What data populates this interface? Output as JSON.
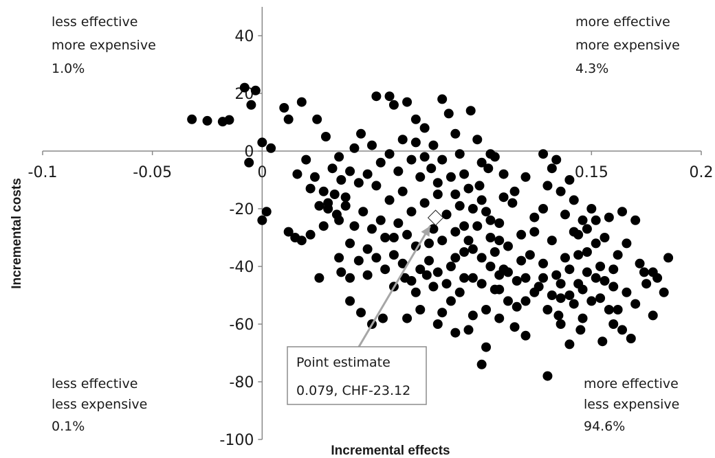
{
  "chart_data": {
    "type": "scatter",
    "xlabel": "Incremental effects",
    "ylabel": "Incremental costs",
    "xlim": [
      -0.1,
      0.2
    ],
    "ylim": [
      -100,
      50
    ],
    "x_ticks": [
      "-0.1",
      "-0.05",
      "0",
      "0.15",
      "0.2"
    ],
    "x_tick_values": [
      -0.1,
      -0.05,
      0,
      0.15,
      0.2
    ],
    "y_ticks": [
      "40",
      "20",
      "0",
      "-20",
      "-40",
      "-60",
      "-80",
      "-100"
    ],
    "y_tick_values": [
      40,
      20,
      0,
      -20,
      -40,
      -60,
      -80,
      -100
    ],
    "grid": false,
    "quadrants": [
      {
        "lines": [
          "less effective",
          "more expensive",
          "1.0%"
        ],
        "position": "top-left"
      },
      {
        "lines": [
          "more effective",
          "more expensive",
          "4.3%"
        ],
        "position": "top-right"
      },
      {
        "lines": [
          "less effective",
          "less expensive",
          "0.1%"
        ],
        "position": "bottom-left"
      },
      {
        "lines": [
          "more effective",
          "less expensive",
          "94.6%"
        ],
        "position": "bottom-right"
      }
    ],
    "point_estimate": {
      "x": 0.079,
      "y": -23.12,
      "label_lines": [
        "Point estimate",
        "0.079, CHF-23.12"
      ]
    },
    "marker_colors": {
      "samples": "#000000",
      "estimate": "#ffffff",
      "callout_border": "#8c8c8c",
      "arrow": "#a6a6a6"
    },
    "points": [
      [
        -0.032,
        11
      ],
      [
        -0.025,
        10.5
      ],
      [
        -0.018,
        10.2
      ],
      [
        -0.015,
        10.8
      ],
      [
        -0.008,
        22
      ],
      [
        -0.005,
        16
      ],
      [
        -0.003,
        21
      ],
      [
        -0.006,
        -4
      ],
      [
        0.0,
        3
      ],
      [
        0.004,
        1
      ],
      [
        0.002,
        -21
      ],
      [
        0.0,
        -24
      ],
      [
        0.012,
        -28
      ],
      [
        0.015,
        -30
      ],
      [
        0.018,
        -31
      ],
      [
        0.022,
        -29
      ],
      [
        0.026,
        -44
      ],
      [
        0.028,
        -26
      ],
      [
        0.03,
        -18
      ],
      [
        0.033,
        -15
      ],
      [
        0.01,
        15
      ],
      [
        0.012,
        11
      ],
      [
        0.018,
        17
      ],
      [
        0.025,
        11
      ],
      [
        0.029,
        5
      ],
      [
        0.035,
        -2
      ],
      [
        0.04,
        -7
      ],
      [
        0.042,
        1
      ],
      [
        0.044,
        -11
      ],
      [
        0.045,
        6
      ],
      [
        0.052,
        19
      ],
      [
        0.058,
        19
      ],
      [
        0.06,
        16
      ],
      [
        0.066,
        17
      ],
      [
        0.07,
        11
      ],
      [
        0.074,
        -2
      ],
      [
        0.077,
        -6
      ],
      [
        0.08,
        -11
      ],
      [
        0.082,
        18
      ],
      [
        0.085,
        13
      ],
      [
        0.088,
        6
      ],
      [
        0.09,
        -1
      ],
      [
        0.092,
        -8
      ],
      [
        0.095,
        14
      ],
      [
        0.098,
        4
      ],
      [
        0.1,
        -4
      ],
      [
        0.104,
        -1
      ],
      [
        0.11,
        -16
      ],
      [
        0.103,
        -6
      ],
      [
        0.099,
        -12
      ],
      [
        0.03,
        -20
      ],
      [
        0.035,
        -24
      ],
      [
        0.038,
        -19
      ],
      [
        0.04,
        -32
      ],
      [
        0.042,
        -26
      ],
      [
        0.046,
        -21
      ],
      [
        0.048,
        -34
      ],
      [
        0.05,
        -27
      ],
      [
        0.052,
        -12
      ],
      [
        0.054,
        -24
      ],
      [
        0.056,
        -30
      ],
      [
        0.058,
        -17
      ],
      [
        0.06,
        -36
      ],
      [
        0.062,
        -25
      ],
      [
        0.064,
        -14
      ],
      [
        0.066,
        -29
      ],
      [
        0.068,
        -21
      ],
      [
        0.07,
        -33
      ],
      [
        0.072,
        -9
      ],
      [
        0.074,
        -18
      ],
      [
        0.076,
        -38
      ],
      [
        0.078,
        -27
      ],
      [
        0.08,
        -15
      ],
      [
        0.082,
        -31
      ],
      [
        0.084,
        -22
      ],
      [
        0.086,
        -40
      ],
      [
        0.088,
        -28
      ],
      [
        0.09,
        -19
      ],
      [
        0.092,
        -35
      ],
      [
        0.094,
        -13
      ],
      [
        0.096,
        -44
      ],
      [
        0.098,
        -26
      ],
      [
        0.1,
        -37
      ],
      [
        0.102,
        -21
      ],
      [
        0.104,
        -30
      ],
      [
        0.106,
        -48
      ],
      [
        0.108,
        -25
      ],
      [
        0.11,
        -41
      ],
      [
        0.112,
        -33
      ],
      [
        0.114,
        -18
      ],
      [
        0.116,
        -45
      ],
      [
        0.118,
        -29
      ],
      [
        0.12,
        -52
      ],
      [
        0.122,
        -36
      ],
      [
        0.124,
        -23
      ],
      [
        0.126,
        -47
      ],
      [
        0.128,
        -39
      ],
      [
        0.13,
        -55
      ],
      [
        0.132,
        -31
      ],
      [
        0.134,
        -43
      ],
      [
        0.136,
        -60
      ],
      [
        0.138,
        -37
      ],
      [
        0.14,
        -50
      ],
      [
        0.142,
        -28
      ],
      [
        0.144,
        -46
      ],
      [
        0.146,
        -58
      ],
      [
        0.148,
        -35
      ],
      [
        0.15,
        -52
      ],
      [
        0.152,
        -44
      ],
      [
        0.154,
        -40
      ],
      [
        0.156,
        -30
      ],
      [
        0.158,
        -55
      ],
      [
        0.16,
        -47
      ],
      [
        0.162,
        -36
      ],
      [
        0.164,
        -62
      ],
      [
        0.166,
        -49
      ],
      [
        0.17,
        -53
      ],
      [
        0.172,
        -39
      ],
      [
        0.175,
        -46
      ],
      [
        0.178,
        -57
      ],
      [
        0.18,
        -44
      ],
      [
        0.183,
        -49
      ],
      [
        0.185,
        -37
      ],
      [
        0.168,
        -65
      ],
      [
        0.16,
        -60
      ],
      [
        0.155,
        -66
      ],
      [
        0.145,
        -62
      ],
      [
        0.14,
        -67
      ],
      [
        0.135,
        -57
      ],
      [
        0.13,
        -78
      ],
      [
        0.12,
        -64
      ],
      [
        0.115,
        -61
      ],
      [
        0.108,
        -58
      ],
      [
        0.102,
        -55
      ],
      [
        0.096,
        -57
      ],
      [
        0.09,
        -49
      ],
      [
        0.086,
        -52
      ],
      [
        0.082,
        -56
      ],
      [
        0.078,
        -47
      ],
      [
        0.075,
        -43
      ],
      [
        0.07,
        -49
      ],
      [
        0.065,
        -44
      ],
      [
        0.06,
        -47
      ],
      [
        0.055,
        -58
      ],
      [
        0.05,
        -60
      ],
      [
        0.045,
        -56
      ],
      [
        0.04,
        -44
      ],
      [
        0.035,
        -37
      ],
      [
        0.036,
        -42
      ],
      [
        0.04,
        -52
      ],
      [
        0.1,
        -74
      ],
      [
        0.102,
        -68
      ],
      [
        0.094,
        -62
      ],
      [
        0.088,
        -63
      ],
      [
        0.08,
        -60
      ],
      [
        0.072,
        -55
      ],
      [
        0.066,
        -58
      ],
      [
        0.108,
        -48
      ],
      [
        0.112,
        -42
      ],
      [
        0.118,
        -38
      ],
      [
        0.124,
        -28
      ],
      [
        0.128,
        -20
      ],
      [
        0.13,
        -12
      ],
      [
        0.132,
        -6
      ],
      [
        0.134,
        -3
      ],
      [
        0.128,
        -1
      ],
      [
        0.12,
        -9
      ],
      [
        0.115,
        -14
      ],
      [
        0.11,
        -8
      ],
      [
        0.106,
        -2
      ],
      [
        0.016,
        -8
      ],
      [
        0.02,
        -3
      ],
      [
        0.024,
        -9
      ],
      [
        0.028,
        -14
      ],
      [
        0.032,
        -6
      ],
      [
        0.036,
        -10
      ],
      [
        0.038,
        -16
      ],
      [
        0.034,
        -22
      ],
      [
        0.026,
        -19
      ],
      [
        0.022,
        -13
      ],
      [
        0.048,
        -8
      ],
      [
        0.05,
        2
      ],
      [
        0.054,
        -4
      ],
      [
        0.058,
        -1
      ],
      [
        0.062,
        -7
      ],
      [
        0.064,
        4
      ],
      [
        0.068,
        -3
      ],
      [
        0.07,
        3
      ],
      [
        0.074,
        8
      ],
      [
        0.078,
        2
      ],
      [
        0.082,
        -3
      ],
      [
        0.086,
        -9
      ],
      [
        0.088,
        -15
      ],
      [
        0.092,
        -26
      ],
      [
        0.094,
        -31
      ],
      [
        0.096,
        -20
      ],
      [
        0.1,
        -17
      ],
      [
        0.104,
        -24
      ],
      [
        0.106,
        -35
      ],
      [
        0.108,
        -31
      ],
      [
        0.044,
        -38
      ],
      [
        0.048,
        -43
      ],
      [
        0.052,
        -37
      ],
      [
        0.056,
        -41
      ],
      [
        0.06,
        -30
      ],
      [
        0.064,
        -39
      ],
      [
        0.068,
        -45
      ],
      [
        0.072,
        -41
      ],
      [
        0.076,
        -32
      ],
      [
        0.08,
        -42
      ],
      [
        0.084,
        -46
      ],
      [
        0.088,
        -37
      ],
      [
        0.092,
        -44
      ],
      [
        0.096,
        -34
      ],
      [
        0.1,
        -46
      ],
      [
        0.104,
        -40
      ],
      [
        0.108,
        -43
      ],
      [
        0.112,
        -52
      ],
      [
        0.116,
        -54
      ],
      [
        0.12,
        -44
      ],
      [
        0.124,
        -49
      ],
      [
        0.128,
        -44
      ],
      [
        0.132,
        -50
      ],
      [
        0.136,
        -46
      ],
      [
        0.14,
        -41
      ],
      [
        0.144,
        -36
      ],
      [
        0.148,
        -42
      ],
      [
        0.152,
        -32
      ],
      [
        0.156,
        -45
      ],
      [
        0.16,
        -41
      ],
      [
        0.138,
        -22
      ],
      [
        0.142,
        -17
      ],
      [
        0.146,
        -24
      ],
      [
        0.15,
        -20
      ],
      [
        0.136,
        -14
      ],
      [
        0.14,
        -10
      ],
      [
        0.144,
        -29
      ],
      [
        0.148,
        -27
      ],
      [
        0.152,
        -24
      ],
      [
        0.158,
        -23
      ],
      [
        0.164,
        -21
      ],
      [
        0.166,
        -32
      ],
      [
        0.17,
        -24
      ],
      [
        0.174,
        -42
      ],
      [
        0.178,
        -42
      ],
      [
        0.162,
        -55
      ],
      [
        0.154,
        -51
      ],
      [
        0.146,
        -48
      ],
      [
        0.142,
        -53
      ],
      [
        0.136,
        -51
      ]
    ]
  }
}
